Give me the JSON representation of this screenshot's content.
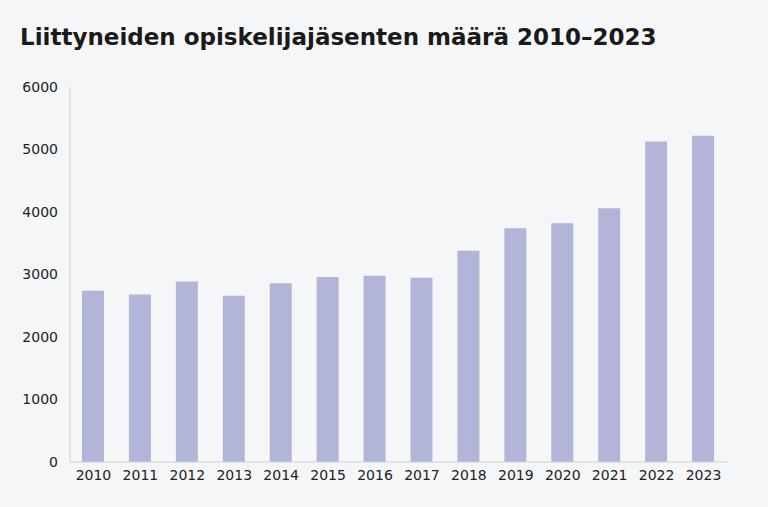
{
  "chart_data": {
    "type": "bar",
    "title": "Liittyneiden opiskelijajäsenten määrä 2010–2023",
    "categories": [
      "2010",
      "2011",
      "2012",
      "2013",
      "2014",
      "2015",
      "2016",
      "2017",
      "2018",
      "2019",
      "2020",
      "2021",
      "2022",
      "2023"
    ],
    "values": [
      2740,
      2680,
      2890,
      2660,
      2860,
      2960,
      2980,
      2950,
      3380,
      3740,
      3820,
      4060,
      5130,
      5220
    ],
    "color": "#b3b5d8",
    "ylim": [
      0,
      6000
    ],
    "yticks": [
      0,
      1000,
      2000,
      3000,
      4000,
      5000,
      6000
    ],
    "grid": false
  }
}
